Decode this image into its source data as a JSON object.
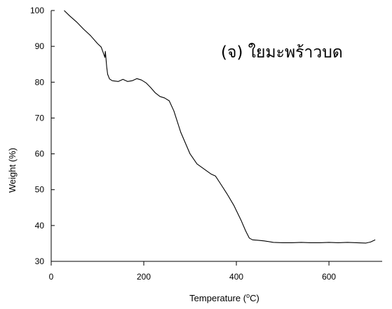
{
  "chart_data": {
    "type": "line",
    "title": "",
    "annotation": "(จ) ใยมะพร้าวบด",
    "xlabel_main": "Temperature (",
    "xlabel_sup": "o",
    "xlabel_end": "C)",
    "ylabel": "Weight (%)",
    "xlim": [
      0,
      715
    ],
    "ylim": [
      30,
      100
    ],
    "xticks": [
      0,
      200,
      400,
      600
    ],
    "yticks": [
      30,
      40,
      50,
      60,
      70,
      80,
      90,
      100
    ],
    "grid": false,
    "legend": "none",
    "line_color": "#000000",
    "series": [
      {
        "x": [
          28,
          40,
          55,
          70,
          85,
          100,
          108,
          112,
          116,
          117,
          118,
          119,
          120,
          122,
          126,
          132,
          145,
          155,
          165,
          175,
          185,
          195,
          205,
          215,
          225,
          235,
          245,
          255,
          265,
          280,
          300,
          315,
          330,
          345,
          355,
          365,
          380,
          395,
          410,
          420,
          428,
          435,
          445,
          460,
          480,
          500,
          520,
          540,
          560,
          580,
          600,
          620,
          640,
          660,
          680,
          690,
          700
        ],
        "y": [
          100,
          98.5,
          96.8,
          94.8,
          93.0,
          90.8,
          89.8,
          88.4,
          86.9,
          88.6,
          87.2,
          85.5,
          84.2,
          82.2,
          80.9,
          80.4,
          80.2,
          80.8,
          80.2,
          80.4,
          81.0,
          80.6,
          79.8,
          78.5,
          77.0,
          76.0,
          75.6,
          74.8,
          72.0,
          66.0,
          60.0,
          57.2,
          55.8,
          54.4,
          53.8,
          51.8,
          48.8,
          45.5,
          41.5,
          38.5,
          36.5,
          36.0,
          35.9,
          35.7,
          35.3,
          35.2,
          35.2,
          35.3,
          35.2,
          35.2,
          35.3,
          35.2,
          35.3,
          35.2,
          35.1,
          35.4,
          36.0
        ]
      }
    ]
  }
}
